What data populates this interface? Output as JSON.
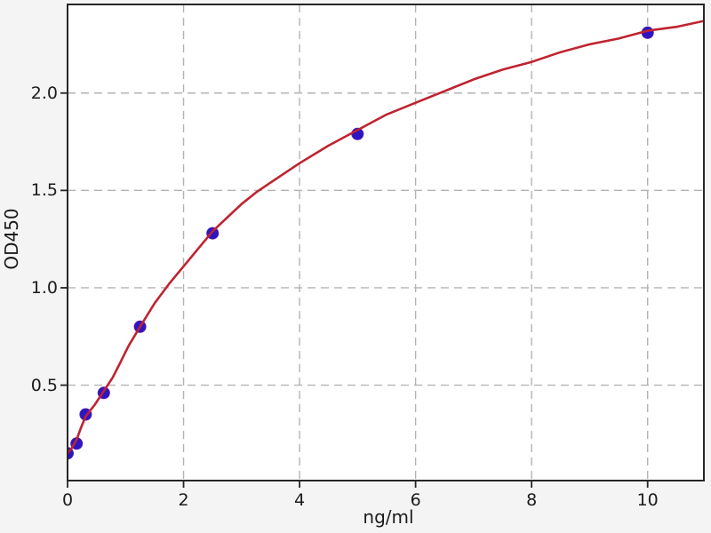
{
  "figure": {
    "background_color": "#f4f4f4",
    "plot_background_color": "#ffffff",
    "spine_color": "#262626",
    "tick_color": "#262626",
    "text_color": "#1c1c1c"
  },
  "chart_data": {
    "type": "scatter",
    "xlabel": "ng/ml",
    "ylabel": "OD450",
    "xlim": [
      0,
      10.97
    ],
    "ylim": [
      0.01,
      2.455
    ],
    "xticks": {
      "values": [
        0,
        2,
        4,
        6,
        8,
        10
      ],
      "labels": [
        "0",
        "2",
        "4",
        "6",
        "8",
        "10"
      ]
    },
    "yticks": {
      "values": [
        0.5,
        1.0,
        1.5,
        2.0
      ],
      "labels": [
        "0.5",
        "1.0",
        "1.5",
        "2.0"
      ]
    },
    "grid": {
      "style": "dashed",
      "color": "#b3b3b3"
    },
    "legend": "none",
    "series": [
      {
        "name": "standard-points",
        "type": "scatter",
        "color": "#2b16c3",
        "edge_color": "#501bb0",
        "marker_radius": 6.5,
        "x": [
          0,
          0.156,
          0.3125,
          0.625,
          1.25,
          2.5,
          5,
          10
        ],
        "y": [
          0.15,
          0.2,
          0.35,
          0.46,
          0.8,
          1.28,
          1.79,
          2.31
        ]
      },
      {
        "name": "fit-curve",
        "type": "line",
        "color": "#bf2330",
        "line_width": 2.6,
        "x": [
          0,
          0.08,
          0.156,
          0.23,
          0.3125,
          0.47,
          0.625,
          0.78,
          0.9,
          1.05,
          1.25,
          1.5,
          1.75,
          2.0,
          2.25,
          2.5,
          2.75,
          3.0,
          3.25,
          3.5,
          4.0,
          4.5,
          5.0,
          5.5,
          6.0,
          6.5,
          7.0,
          7.5,
          8.0,
          8.5,
          9.0,
          9.5,
          10.0,
          10.5,
          10.97
        ],
        "y": [
          0.15,
          0.18,
          0.22,
          0.28,
          0.34,
          0.4,
          0.47,
          0.54,
          0.61,
          0.7,
          0.8,
          0.92,
          1.02,
          1.11,
          1.2,
          1.29,
          1.36,
          1.43,
          1.49,
          1.54,
          1.64,
          1.73,
          1.81,
          1.89,
          1.95,
          2.01,
          2.07,
          2.12,
          2.16,
          2.21,
          2.25,
          2.28,
          2.32,
          2.34,
          2.37
        ]
      }
    ]
  }
}
